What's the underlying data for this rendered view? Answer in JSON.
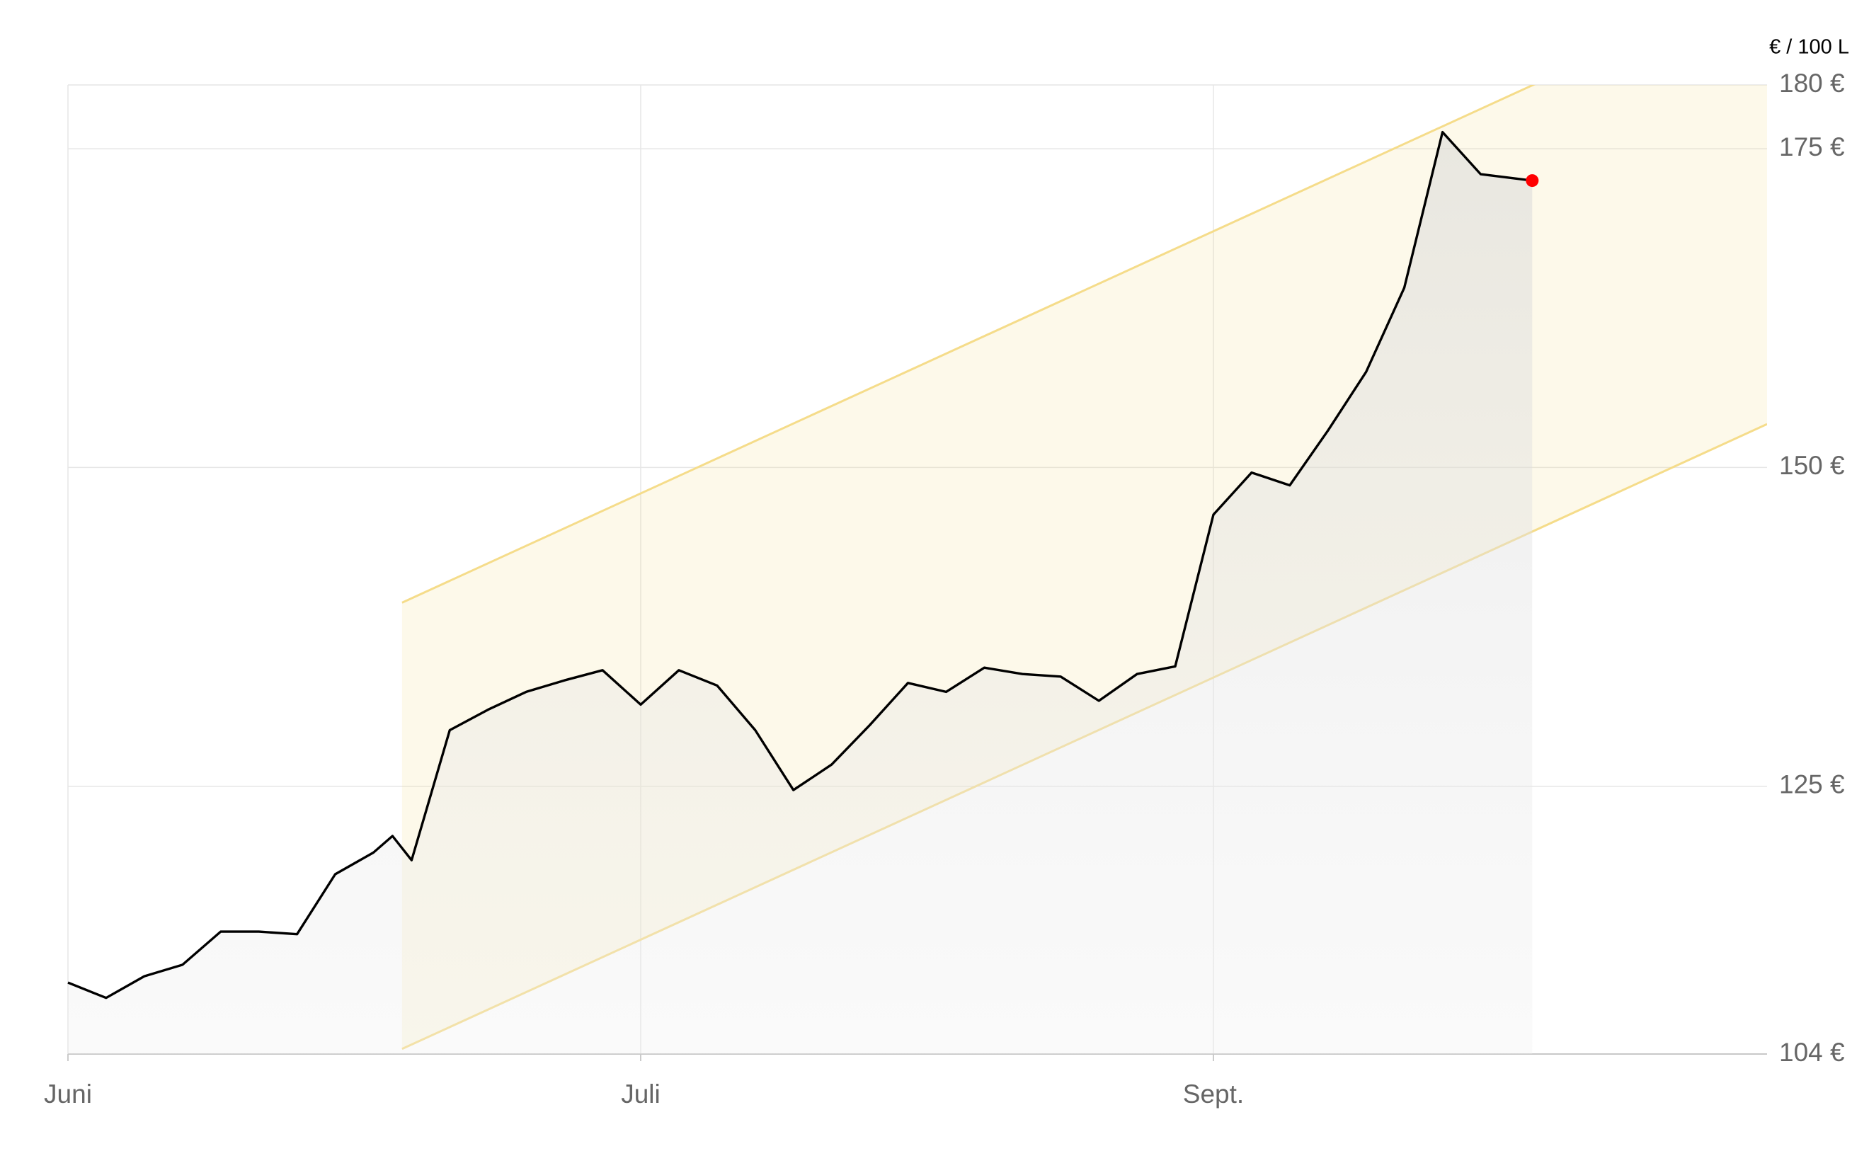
{
  "chart_data": {
    "type": "line",
    "unit_label": "€ / 100 L",
    "x": [
      0,
      2,
      4,
      6,
      8,
      10,
      12,
      14,
      16,
      17,
      18,
      20,
      22,
      24,
      26,
      28,
      30,
      32,
      34,
      36,
      38,
      40,
      42,
      44,
      46,
      48,
      50,
      52,
      54,
      56,
      58,
      60,
      62,
      64,
      66,
      68,
      70,
      72,
      74,
      76.7
    ],
    "series": [
      {
        "color": "#000000",
        "values": [
          109.6,
          108.4,
          110.1,
          111.0,
          113.6,
          113.6,
          113.4,
          118.1,
          119.8,
          121.1,
          119.2,
          129.4,
          131.0,
          132.4,
          133.3,
          134.1,
          131.4,
          134.1,
          132.9,
          129.4,
          124.7,
          126.7,
          129.8,
          133.1,
          132.4,
          134.3,
          133.8,
          133.6,
          131.7,
          133.8,
          134.4,
          146.3,
          149.6,
          148.6,
          152.9,
          157.5,
          164.1,
          176.3,
          173.0,
          172.5
        ]
      }
    ],
    "last_point_color": "#ff0000",
    "channel": {
      "x": [
        17.5,
        89
      ],
      "upper": [
        139.4,
        188.4
      ],
      "lower": [
        104.4,
        153.4
      ],
      "color": "#f5dc8a"
    },
    "xlim": [
      0,
      89
    ],
    "xticks": [
      {
        "value": 0,
        "label": "Juni"
      },
      {
        "value": 30,
        "label": "Juli"
      },
      {
        "value": 60,
        "label": "Sept."
      }
    ],
    "ylim": [
      104,
      180
    ],
    "yticks": [
      {
        "value": 104,
        "label": "104 €"
      },
      {
        "value": 125,
        "label": "125 €"
      },
      {
        "value": 150,
        "label": "150 €"
      },
      {
        "value": 175,
        "label": "175 €"
      },
      {
        "value": 180,
        "label": "180 €"
      }
    ],
    "grid": true
  }
}
